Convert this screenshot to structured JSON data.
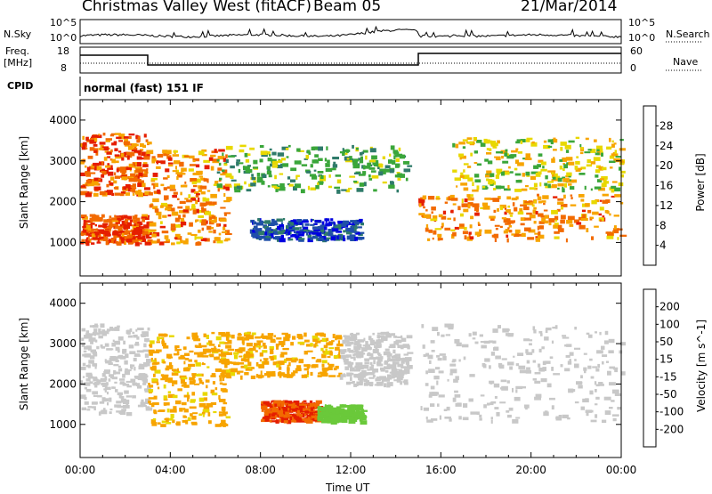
{
  "header": {
    "site": "Christmas Valley West (fitACF)",
    "beam": "Beam 05",
    "date": "21/Mar/2014"
  },
  "nsky": {
    "label": "N.Sky",
    "tick_top": "10^5",
    "tick_bottom": "10^0",
    "right_label": "N.Search",
    "right_tick_top": "10^5",
    "right_tick_bottom": "10^0"
  },
  "freq": {
    "label_line1": "Freq.",
    "label_line2": "[MHz]",
    "tick_top": "18",
    "tick_bottom": "8",
    "right_label": "Nave",
    "right_tick_top": "60",
    "right_tick_bottom": "0"
  },
  "cpid": {
    "label": "CPID",
    "mode": "normal (fast) 151 IF"
  },
  "xaxis": {
    "label": "Time UT",
    "ticks": [
      "00:00",
      "04:00",
      "08:00",
      "12:00",
      "16:00",
      "20:00",
      "00:00"
    ]
  },
  "chart_data": [
    {
      "type": "heatmap",
      "title": "Power",
      "ylabel": "Slant Range [km]",
      "ylim": [
        180,
        4500
      ],
      "yticks": [
        1000,
        2000,
        3000,
        4000
      ],
      "xlim_hours": [
        0,
        24
      ],
      "colorbar": {
        "label": "Power [dB]",
        "ticks": [
          4,
          8,
          12,
          16,
          20,
          24,
          28
        ],
        "colors": [
          "#0000e0",
          "#1f4fa8",
          "#2f7b6a",
          "#3aa63a",
          "#e8d800",
          "#f7a400",
          "#f26a00",
          "#e51e00"
        ]
      },
      "regions": [
        {
          "name": "early-upper-band",
          "t": [
            0,
            3.0
          ],
          "r": [
            2200,
            3700
          ],
          "level": 26
        },
        {
          "name": "early-lower-band",
          "t": [
            0,
            3.0
          ],
          "r": [
            1000,
            1700
          ],
          "level": 28
        },
        {
          "name": "rising-band",
          "t": [
            3.0,
            6.5
          ],
          "r": [
            1000,
            3300
          ],
          "level": 24
        },
        {
          "name": "day-arc",
          "t": [
            6.0,
            14.5
          ],
          "r": [
            2300,
            3400
          ],
          "level": 14
        },
        {
          "name": "day-low-patch",
          "t": [
            7.5,
            12.5
          ],
          "r": [
            1100,
            1600
          ],
          "level": 6
        },
        {
          "name": "evening-band",
          "t": [
            15.0,
            24
          ],
          "r": [
            1100,
            2200
          ],
          "level": 24
        },
        {
          "name": "evening-upper-band",
          "t": [
            16.5,
            24
          ],
          "r": [
            2300,
            3600
          ],
          "level": 18
        }
      ]
    },
    {
      "type": "heatmap",
      "title": "Velocity",
      "ylabel": "Slant Range [km]",
      "ylim": [
        180,
        4500
      ],
      "yticks": [
        1000,
        2000,
        3000,
        4000
      ],
      "xlim_hours": [
        0,
        24
      ],
      "colorbar": {
        "label": "Velocity [m s^-1]",
        "ticks": [
          -200,
          -100,
          -50,
          -15,
          15,
          50,
          100,
          200
        ],
        "colors": [
          "#e51e00",
          "#f26a00",
          "#f7a400",
          "#e8d800",
          "#c8c8c8",
          "#6ac93a",
          "#2f7b6a",
          "#1f4fa8",
          "#2a2ad0"
        ]
      },
      "regions": [
        {
          "name": "early-grey",
          "t": [
            0,
            3.0
          ],
          "r": [
            1300,
            3500
          ],
          "level": 0
        },
        {
          "name": "rising-orange",
          "t": [
            3.0,
            6.5
          ],
          "r": [
            1000,
            3300
          ],
          "level": -60
        },
        {
          "name": "day-arc-orange",
          "t": [
            6.0,
            11.5
          ],
          "r": [
            2200,
            3300
          ],
          "level": -60
        },
        {
          "name": "day-arc-grey",
          "t": [
            11.5,
            14.5
          ],
          "r": [
            2000,
            3300
          ],
          "level": 0
        },
        {
          "name": "day-red-patch",
          "t": [
            8.0,
            10.5
          ],
          "r": [
            1100,
            1600
          ],
          "level": -200
        },
        {
          "name": "day-green-patch",
          "t": [
            10.5,
            12.5
          ],
          "r": [
            1100,
            1500
          ],
          "level": 30
        },
        {
          "name": "evening-grey",
          "t": [
            15.0,
            24
          ],
          "r": [
            1100,
            3500
          ],
          "level": 0
        }
      ]
    }
  ]
}
